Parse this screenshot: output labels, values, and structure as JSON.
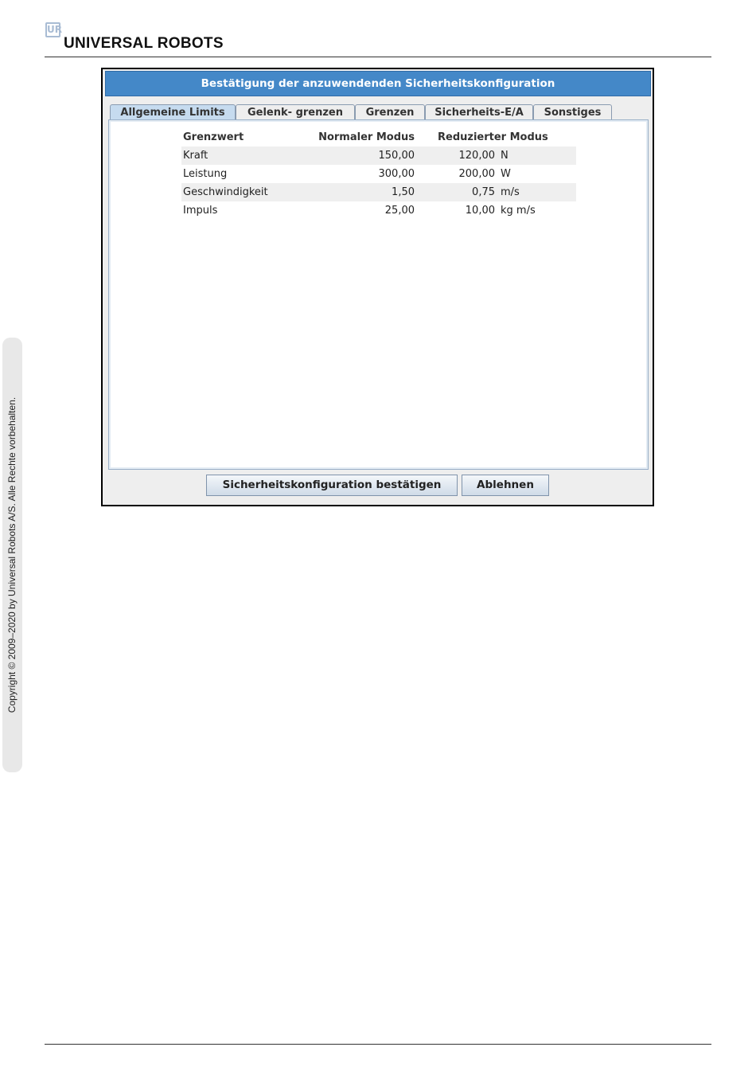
{
  "header": {
    "logo_mark": "UR",
    "logo_text": "UNIVERSAL ROBOTS"
  },
  "sidebar": {
    "copyright": "Copyright © 2009–2020 by Universal Robots A/S. Alle Rechte vorbehalten."
  },
  "dialog": {
    "title": "Bestätigung der anzuwendenden Sicherheitskonfiguration",
    "tabs": [
      {
        "label": "Allgemeine Limits",
        "active": true
      },
      {
        "label": "Gelenk- grenzen"
      },
      {
        "label": "Grenzen"
      },
      {
        "label": "Sicherheits-E/A"
      },
      {
        "label": "Sonstiges"
      }
    ],
    "table": {
      "headers": [
        "Grenzwert",
        "Normaler Modus",
        "Reduzierter Modus"
      ],
      "rows": [
        {
          "name": "Kraft",
          "normal": "150,00",
          "reduced": "120,00",
          "unit": "N"
        },
        {
          "name": "Leistung",
          "normal": "300,00",
          "reduced": "200,00",
          "unit": "W"
        },
        {
          "name": "Geschwindigkeit",
          "normal": "1,50",
          "reduced": "0,75",
          "unit": "m/s"
        },
        {
          "name": "Impuls",
          "normal": "25,00",
          "reduced": "10,00",
          "unit": "kg m/s"
        }
      ]
    },
    "buttons": {
      "confirm": "Sicherheitskonfiguration bestätigen",
      "reject": "Ablehnen"
    }
  }
}
